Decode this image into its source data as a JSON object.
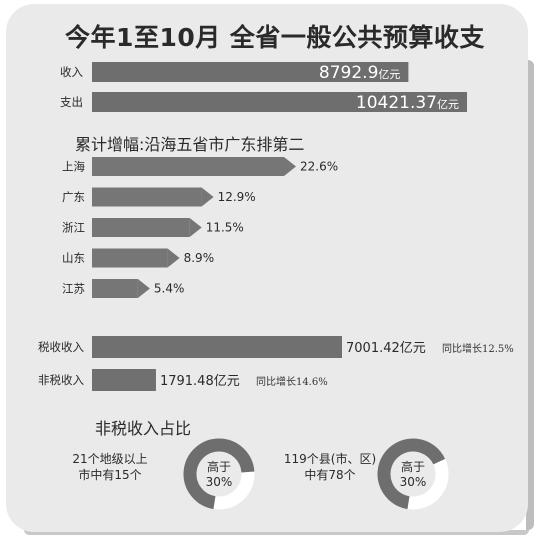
{
  "title": "今年1至10月 全省一般公共预算收支",
  "chart_data": [
    {
      "type": "bar",
      "orientation": "horizontal",
      "categories": [
        "收入",
        "支出"
      ],
      "values": [
        8792.9,
        10421.37
      ],
      "value_labels": [
        "8792.9",
        "10421.37"
      ],
      "unit": "亿元",
      "color": "#6e6e6e"
    },
    {
      "type": "bar",
      "orientation": "horizontal",
      "title": "累计增幅:沿海五省市广东排第二",
      "categories": [
        "上海",
        "广东",
        "浙江",
        "山东",
        "江苏"
      ],
      "values": [
        22.6,
        12.9,
        11.5,
        8.9,
        5.4
      ],
      "value_labels": [
        "22.6%",
        "12.9%",
        "11.5%",
        "8.9%",
        "5.4%"
      ],
      "color": "#767676"
    },
    {
      "type": "bar",
      "orientation": "horizontal",
      "categories": [
        "税收收入",
        "非税收入"
      ],
      "values": [
        7001.42,
        1791.48
      ],
      "value_labels": [
        "7001.42亿元",
        "1791.48亿元"
      ],
      "growth_labels": [
        "同比增长12.5%",
        "同比增长14.6%"
      ],
      "color": "#707070"
    },
    {
      "type": "pie",
      "title": "非税收入占比",
      "items": [
        {
          "text_lines": [
            "21个地级以上",
            "市中有15个"
          ],
          "center_lines": [
            "高于",
            "30%"
          ],
          "fraction": 0.714
        },
        {
          "text_lines": [
            "119个县(市、区)",
            "中有78个"
          ],
          "center_lines": [
            "高于",
            "30%"
          ],
          "fraction": 0.655
        }
      ],
      "colors": {
        "filled": "#6e6e6e",
        "rest": "#ffffff"
      }
    }
  ]
}
